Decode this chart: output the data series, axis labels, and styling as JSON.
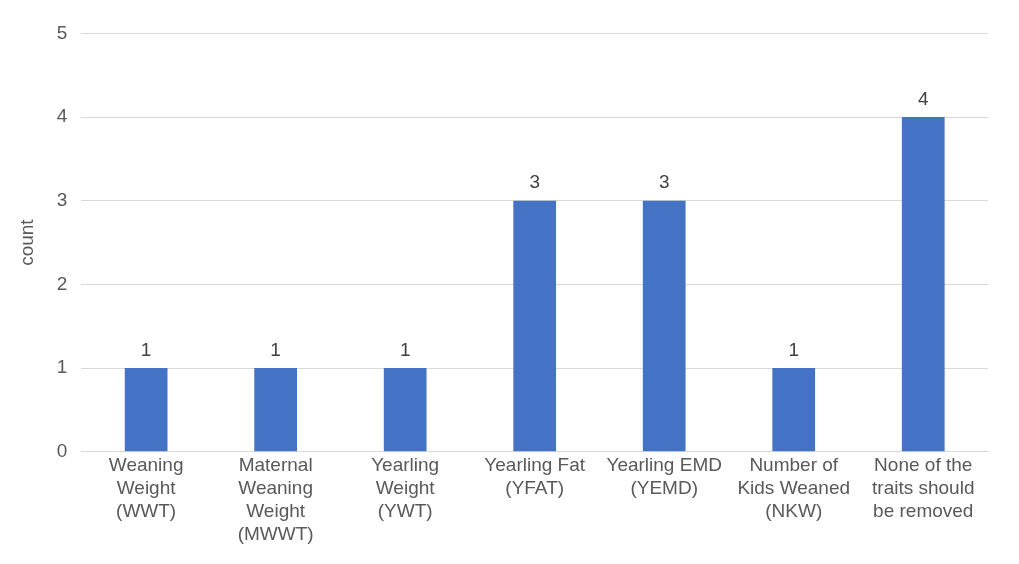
{
  "chart_data": {
    "type": "bar",
    "ylabel": "count",
    "categories": [
      "Weaning Weight (WWT)",
      "Maternal Weaning Weight (MWWT)",
      "Yearling Weight (YWT)",
      "Yearling Fat (YFAT)",
      "Yearling EMD (YEMD)",
      "Number of Kids Weaned (NKW)",
      "None of the traits should be removed"
    ],
    "values": [
      1,
      1,
      1,
      3,
      3,
      1,
      4
    ],
    "color": "#4472c4",
    "ylim": [
      0,
      5
    ],
    "yticks": [
      0,
      1,
      2,
      3,
      4,
      5
    ],
    "grid": "y",
    "data_labels": true,
    "legend": false
  }
}
